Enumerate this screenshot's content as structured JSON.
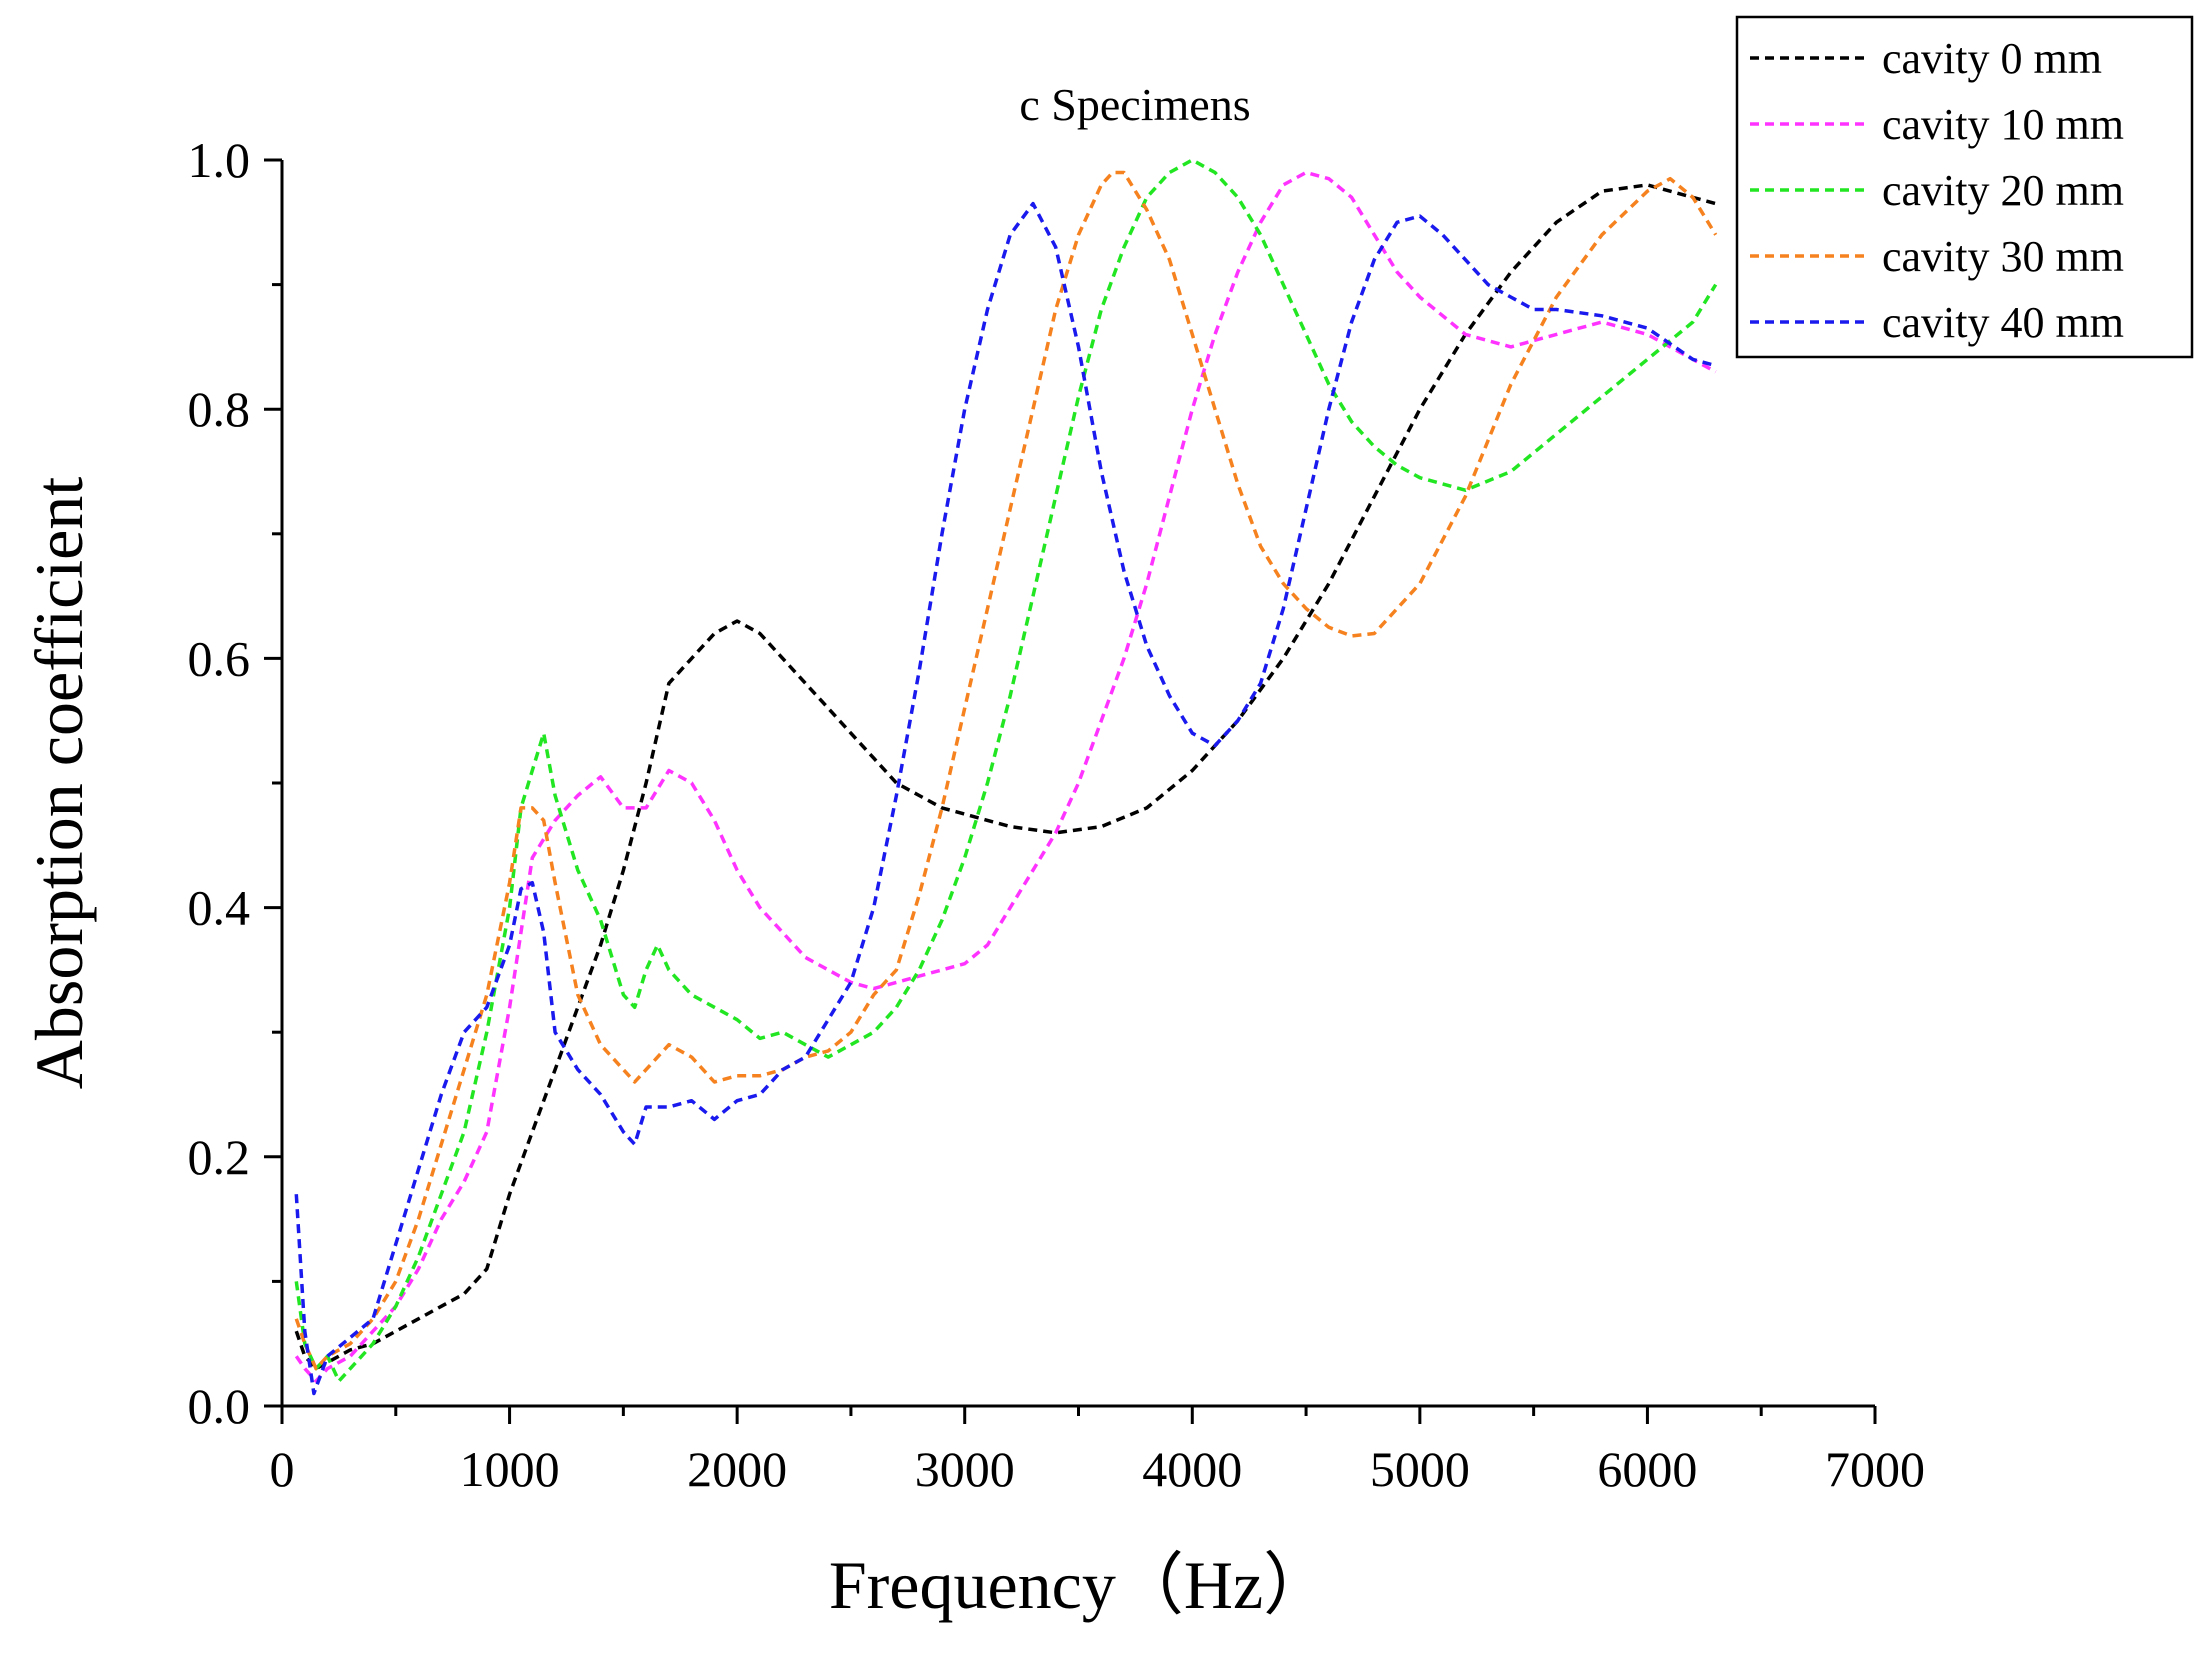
{
  "chart_data": {
    "type": "line",
    "title": "c Specimens",
    "xlabel": "Frequency（Hz）",
    "ylabel": "Absorption coefficient",
    "xlim": [
      0,
      7000
    ],
    "ylim": [
      0,
      1.0
    ],
    "x_ticks": [
      0,
      1000,
      2000,
      3000,
      4000,
      5000,
      6000,
      7000
    ],
    "x_tick_labels": [
      "0",
      "1000",
      "2000",
      "3000",
      "4000",
      "5000",
      "6000",
      "7000"
    ],
    "y_ticks": [
      0,
      0.2,
      0.4,
      0.6,
      0.8,
      1.0
    ],
    "y_tick_labels": [
      "0.0",
      "0.2",
      "0.4",
      "0.6",
      "0.8",
      "1.0"
    ],
    "legend_position": "top-right",
    "grid": false,
    "line_style": "dashed",
    "series": [
      {
        "name": "cavity 0 mm",
        "color": "#000000",
        "points": [
          [
            63,
            0.06
          ],
          [
            100,
            0.04
          ],
          [
            150,
            0.03
          ],
          [
            200,
            0.035
          ],
          [
            300,
            0.045
          ],
          [
            400,
            0.05
          ],
          [
            500,
            0.06
          ],
          [
            600,
            0.07
          ],
          [
            700,
            0.08
          ],
          [
            800,
            0.09
          ],
          [
            900,
            0.11
          ],
          [
            1000,
            0.17
          ],
          [
            1100,
            0.22
          ],
          [
            1200,
            0.27
          ],
          [
            1300,
            0.32
          ],
          [
            1400,
            0.37
          ],
          [
            1500,
            0.43
          ],
          [
            1600,
            0.5
          ],
          [
            1700,
            0.58
          ],
          [
            1800,
            0.6
          ],
          [
            1900,
            0.62
          ],
          [
            2000,
            0.63
          ],
          [
            2100,
            0.62
          ],
          [
            2200,
            0.6
          ],
          [
            2300,
            0.58
          ],
          [
            2400,
            0.56
          ],
          [
            2500,
            0.54
          ],
          [
            2600,
            0.52
          ],
          [
            2700,
            0.5
          ],
          [
            2800,
            0.49
          ],
          [
            2900,
            0.48
          ],
          [
            3000,
            0.475
          ],
          [
            3200,
            0.465
          ],
          [
            3400,
            0.46
          ],
          [
            3600,
            0.465
          ],
          [
            3800,
            0.48
          ],
          [
            4000,
            0.51
          ],
          [
            4200,
            0.55
          ],
          [
            4400,
            0.6
          ],
          [
            4600,
            0.66
          ],
          [
            4800,
            0.73
          ],
          [
            5000,
            0.8
          ],
          [
            5200,
            0.86
          ],
          [
            5400,
            0.91
          ],
          [
            5600,
            0.95
          ],
          [
            5800,
            0.975
          ],
          [
            6000,
            0.98
          ],
          [
            6200,
            0.97
          ],
          [
            6300,
            0.965
          ]
        ]
      },
      {
        "name": "cavity 10 mm",
        "color": "#ff33ff",
        "points": [
          [
            63,
            0.04
          ],
          [
            100,
            0.03
          ],
          [
            150,
            0.02
          ],
          [
            200,
            0.03
          ],
          [
            300,
            0.04
          ],
          [
            400,
            0.06
          ],
          [
            500,
            0.08
          ],
          [
            600,
            0.11
          ],
          [
            700,
            0.15
          ],
          [
            800,
            0.18
          ],
          [
            900,
            0.22
          ],
          [
            1000,
            0.32
          ],
          [
            1100,
            0.44
          ],
          [
            1200,
            0.47
          ],
          [
            1300,
            0.49
          ],
          [
            1400,
            0.505
          ],
          [
            1500,
            0.48
          ],
          [
            1600,
            0.48
          ],
          [
            1700,
            0.51
          ],
          [
            1800,
            0.5
          ],
          [
            1900,
            0.47
          ],
          [
            2000,
            0.43
          ],
          [
            2100,
            0.4
          ],
          [
            2200,
            0.38
          ],
          [
            2300,
            0.36
          ],
          [
            2400,
            0.35
          ],
          [
            2500,
            0.34
          ],
          [
            2600,
            0.335
          ],
          [
            2700,
            0.34
          ],
          [
            2800,
            0.345
          ],
          [
            2900,
            0.35
          ],
          [
            3000,
            0.355
          ],
          [
            3100,
            0.37
          ],
          [
            3200,
            0.4
          ],
          [
            3300,
            0.43
          ],
          [
            3400,
            0.46
          ],
          [
            3500,
            0.5
          ],
          [
            3600,
            0.55
          ],
          [
            3700,
            0.6
          ],
          [
            3800,
            0.66
          ],
          [
            3900,
            0.73
          ],
          [
            4000,
            0.8
          ],
          [
            4100,
            0.86
          ],
          [
            4200,
            0.91
          ],
          [
            4300,
            0.95
          ],
          [
            4400,
            0.98
          ],
          [
            4500,
            0.99
          ],
          [
            4600,
            0.985
          ],
          [
            4700,
            0.97
          ],
          [
            4800,
            0.94
          ],
          [
            4900,
            0.91
          ],
          [
            5000,
            0.89
          ],
          [
            5200,
            0.86
          ],
          [
            5400,
            0.85
          ],
          [
            5600,
            0.86
          ],
          [
            5800,
            0.87
          ],
          [
            6000,
            0.86
          ],
          [
            6200,
            0.84
          ],
          [
            6300,
            0.83
          ]
        ]
      },
      {
        "name": "cavity 20 mm",
        "color": "#22e622",
        "points": [
          [
            63,
            0.1
          ],
          [
            100,
            0.05
          ],
          [
            150,
            0.03
          ],
          [
            200,
            0.04
          ],
          [
            250,
            0.02
          ],
          [
            300,
            0.03
          ],
          [
            400,
            0.05
          ],
          [
            500,
            0.08
          ],
          [
            600,
            0.12
          ],
          [
            700,
            0.17
          ],
          [
            800,
            0.22
          ],
          [
            900,
            0.3
          ],
          [
            1000,
            0.4
          ],
          [
            1050,
            0.48
          ],
          [
            1100,
            0.51
          ],
          [
            1150,
            0.54
          ],
          [
            1200,
            0.49
          ],
          [
            1300,
            0.43
          ],
          [
            1400,
            0.39
          ],
          [
            1500,
            0.33
          ],
          [
            1550,
            0.32
          ],
          [
            1600,
            0.35
          ],
          [
            1650,
            0.37
          ],
          [
            1700,
            0.35
          ],
          [
            1800,
            0.33
          ],
          [
            1900,
            0.32
          ],
          [
            2000,
            0.31
          ],
          [
            2100,
            0.295
          ],
          [
            2200,
            0.3
          ],
          [
            2300,
            0.29
          ],
          [
            2400,
            0.28
          ],
          [
            2500,
            0.29
          ],
          [
            2600,
            0.3
          ],
          [
            2700,
            0.32
          ],
          [
            2800,
            0.35
          ],
          [
            2900,
            0.39
          ],
          [
            3000,
            0.44
          ],
          [
            3100,
            0.5
          ],
          [
            3200,
            0.57
          ],
          [
            3300,
            0.65
          ],
          [
            3400,
            0.73
          ],
          [
            3500,
            0.81
          ],
          [
            3600,
            0.88
          ],
          [
            3700,
            0.93
          ],
          [
            3800,
            0.97
          ],
          [
            3900,
            0.99
          ],
          [
            4000,
            1.0
          ],
          [
            4100,
            0.99
          ],
          [
            4200,
            0.97
          ],
          [
            4300,
            0.94
          ],
          [
            4400,
            0.9
          ],
          [
            4500,
            0.86
          ],
          [
            4600,
            0.82
          ],
          [
            4700,
            0.79
          ],
          [
            4800,
            0.77
          ],
          [
            4900,
            0.755
          ],
          [
            5000,
            0.745
          ],
          [
            5200,
            0.735
          ],
          [
            5400,
            0.75
          ],
          [
            5600,
            0.78
          ],
          [
            5800,
            0.81
          ],
          [
            6000,
            0.84
          ],
          [
            6200,
            0.87
          ],
          [
            6300,
            0.9
          ]
        ]
      },
      {
        "name": "cavity 30 mm",
        "color": "#f5821f",
        "points": [
          [
            63,
            0.07
          ],
          [
            100,
            0.05
          ],
          [
            150,
            0.03
          ],
          [
            200,
            0.04
          ],
          [
            300,
            0.05
          ],
          [
            400,
            0.07
          ],
          [
            500,
            0.1
          ],
          [
            600,
            0.15
          ],
          [
            700,
            0.21
          ],
          [
            800,
            0.27
          ],
          [
            900,
            0.33
          ],
          [
            1000,
            0.42
          ],
          [
            1050,
            0.48
          ],
          [
            1100,
            0.48
          ],
          [
            1150,
            0.47
          ],
          [
            1200,
            0.42
          ],
          [
            1300,
            0.33
          ],
          [
            1400,
            0.29
          ],
          [
            1500,
            0.27
          ],
          [
            1550,
            0.26
          ],
          [
            1600,
            0.27
          ],
          [
            1700,
            0.29
          ],
          [
            1800,
            0.28
          ],
          [
            1900,
            0.26
          ],
          [
            2000,
            0.265
          ],
          [
            2100,
            0.265
          ],
          [
            2200,
            0.27
          ],
          [
            2300,
            0.28
          ],
          [
            2400,
            0.285
          ],
          [
            2500,
            0.3
          ],
          [
            2600,
            0.33
          ],
          [
            2700,
            0.35
          ],
          [
            2800,
            0.41
          ],
          [
            2900,
            0.48
          ],
          [
            3000,
            0.56
          ],
          [
            3100,
            0.64
          ],
          [
            3200,
            0.72
          ],
          [
            3300,
            0.8
          ],
          [
            3400,
            0.88
          ],
          [
            3500,
            0.94
          ],
          [
            3600,
            0.98
          ],
          [
            3650,
            0.99
          ],
          [
            3700,
            0.99
          ],
          [
            3800,
            0.96
          ],
          [
            3900,
            0.92
          ],
          [
            4000,
            0.86
          ],
          [
            4100,
            0.8
          ],
          [
            4200,
            0.74
          ],
          [
            4300,
            0.69
          ],
          [
            4400,
            0.66
          ],
          [
            4500,
            0.64
          ],
          [
            4600,
            0.625
          ],
          [
            4700,
            0.618
          ],
          [
            4800,
            0.62
          ],
          [
            4900,
            0.64
          ],
          [
            5000,
            0.66
          ],
          [
            5200,
            0.73
          ],
          [
            5400,
            0.82
          ],
          [
            5600,
            0.89
          ],
          [
            5800,
            0.94
          ],
          [
            6000,
            0.975
          ],
          [
            6100,
            0.985
          ],
          [
            6200,
            0.97
          ],
          [
            6300,
            0.94
          ]
        ]
      },
      {
        "name": "cavity 40 mm",
        "color": "#1a1aee",
        "points": [
          [
            63,
            0.17
          ],
          [
            100,
            0.06
          ],
          [
            140,
            0.01
          ],
          [
            200,
            0.04
          ],
          [
            300,
            0.055
          ],
          [
            400,
            0.07
          ],
          [
            500,
            0.13
          ],
          [
            600,
            0.19
          ],
          [
            700,
            0.25
          ],
          [
            800,
            0.3
          ],
          [
            900,
            0.32
          ],
          [
            1000,
            0.37
          ],
          [
            1050,
            0.415
          ],
          [
            1100,
            0.42
          ],
          [
            1150,
            0.38
          ],
          [
            1200,
            0.3
          ],
          [
            1300,
            0.27
          ],
          [
            1400,
            0.25
          ],
          [
            1500,
            0.22
          ],
          [
            1550,
            0.21
          ],
          [
            1600,
            0.24
          ],
          [
            1700,
            0.24
          ],
          [
            1800,
            0.245
          ],
          [
            1900,
            0.23
          ],
          [
            2000,
            0.245
          ],
          [
            2100,
            0.25
          ],
          [
            2200,
            0.27
          ],
          [
            2300,
            0.28
          ],
          [
            2400,
            0.31
          ],
          [
            2500,
            0.34
          ],
          [
            2600,
            0.4
          ],
          [
            2700,
            0.49
          ],
          [
            2800,
            0.59
          ],
          [
            2900,
            0.7
          ],
          [
            3000,
            0.8
          ],
          [
            3100,
            0.88
          ],
          [
            3200,
            0.94
          ],
          [
            3300,
            0.965
          ],
          [
            3400,
            0.93
          ],
          [
            3500,
            0.85
          ],
          [
            3600,
            0.75
          ],
          [
            3700,
            0.67
          ],
          [
            3800,
            0.61
          ],
          [
            3900,
            0.57
          ],
          [
            4000,
            0.54
          ],
          [
            4100,
            0.53
          ],
          [
            4200,
            0.55
          ],
          [
            4300,
            0.58
          ],
          [
            4400,
            0.64
          ],
          [
            4500,
            0.72
          ],
          [
            4600,
            0.8
          ],
          [
            4700,
            0.87
          ],
          [
            4800,
            0.92
          ],
          [
            4900,
            0.95
          ],
          [
            5000,
            0.955
          ],
          [
            5100,
            0.94
          ],
          [
            5200,
            0.92
          ],
          [
            5300,
            0.9
          ],
          [
            5400,
            0.89
          ],
          [
            5500,
            0.88
          ],
          [
            5600,
            0.88
          ],
          [
            5800,
            0.875
          ],
          [
            6000,
            0.865
          ],
          [
            6200,
            0.84
          ],
          [
            6300,
            0.835
          ]
        ]
      }
    ]
  }
}
